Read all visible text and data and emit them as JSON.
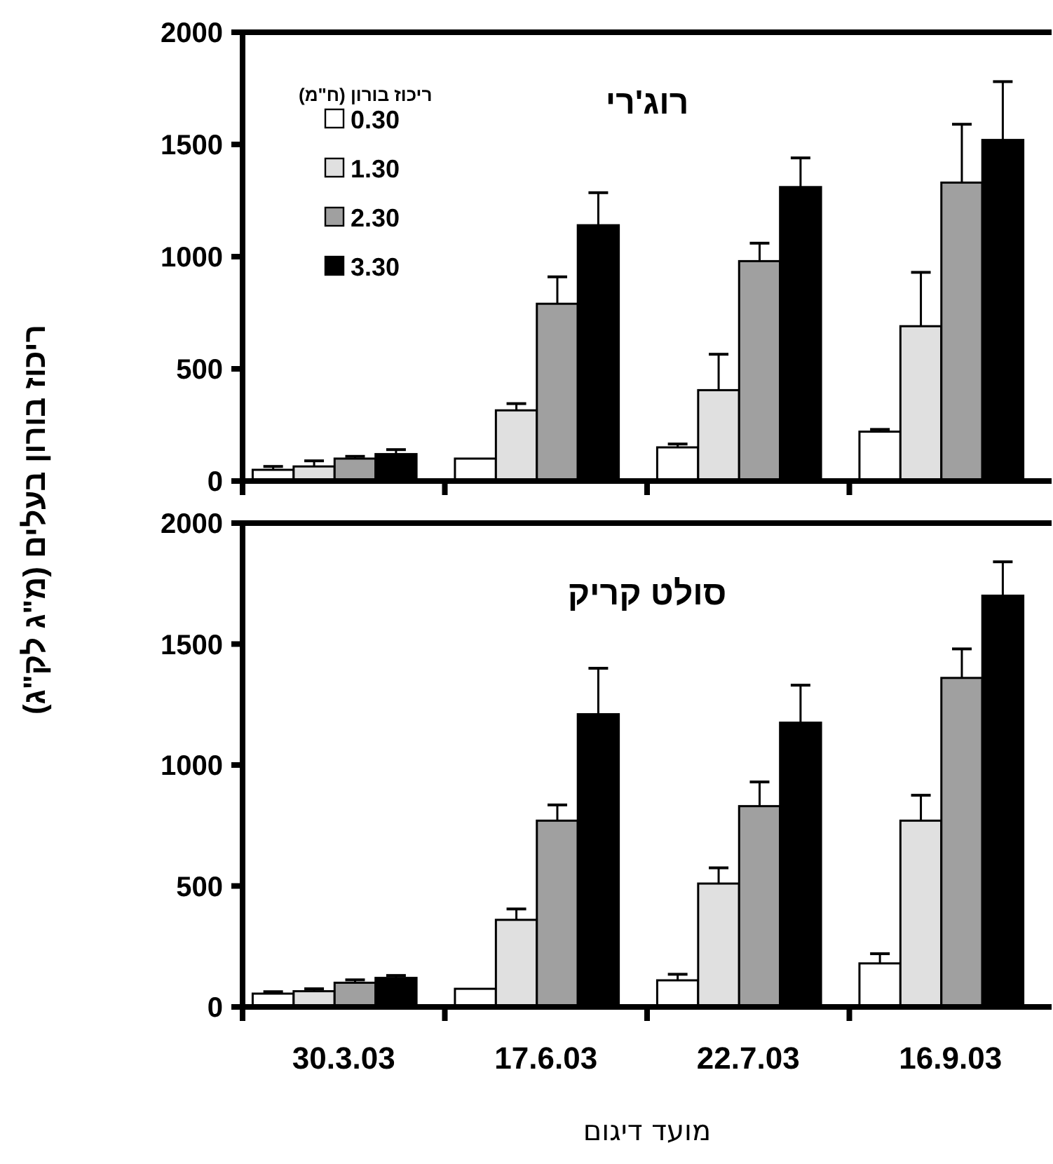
{
  "chart_data": [
    {
      "type": "bar",
      "title": "רוג'רי",
      "ylabel": "ריכוז בורון בעלים (מ\"ג לק\"ג)",
      "legend_title": "ריכוז בורון (ח\"מ)",
      "legend": "top left",
      "tick_labels": "y",
      "categories": [
        "30.3.03",
        "17.6.03",
        "22.7.03",
        "16.9.03"
      ],
      "ylim": [
        0,
        2000
      ],
      "yticks": [
        0,
        500,
        1000,
        1500,
        2000
      ],
      "series": [
        {
          "name": "0.30",
          "color": "#ffffff",
          "values": [
            50,
            100,
            150,
            220
          ],
          "errors": [
            [
              50,
              65
            ],
            null,
            [
              150,
              165
            ],
            [
              220,
              230
            ]
          ]
        },
        {
          "name": "1.30",
          "color": "#e0e0e0",
          "values": [
            65,
            315,
            405,
            690
          ],
          "errors": [
            [
              65,
              90
            ],
            [
              315,
              345
            ],
            [
              405,
              565
            ],
            [
              690,
              930
            ]
          ]
        },
        {
          "name": "2.30",
          "color": "#a0a0a0",
          "values": [
            100,
            790,
            980,
            1330
          ],
          "errors": [
            [
              100,
              110
            ],
            [
              790,
              910
            ],
            [
              980,
              1060
            ],
            [
              1330,
              1590
            ]
          ]
        },
        {
          "name": "3.30",
          "color": "#000000",
          "values": [
            120,
            1140,
            1310,
            1520
          ],
          "errors": [
            [
              120,
              140
            ],
            [
              1140,
              1285
            ],
            [
              1310,
              1440
            ],
            [
              1520,
              1780
            ]
          ]
        }
      ]
    },
    {
      "type": "bar",
      "title": "סולט קריק",
      "xlabel": "מועד דיגום",
      "categories": [
        "30.3.03",
        "17.6.03",
        "22.7.03",
        "16.9.03"
      ],
      "ylim": [
        0,
        2000
      ],
      "yticks": [
        0,
        500,
        1000,
        1500,
        2000
      ],
      "series": [
        {
          "color": "#ffffff",
          "values": [
            55,
            75,
            110,
            180
          ],
          "errors": [
            [
              55,
              63
            ],
            null,
            [
              110,
              135
            ],
            [
              180,
              220
            ]
          ]
        },
        {
          "color": "#e0e0e0",
          "values": [
            65,
            360,
            510,
            770
          ],
          "errors": [
            [
              65,
              75
            ],
            [
              360,
              405
            ],
            [
              510,
              575
            ],
            [
              770,
              875
            ]
          ]
        },
        {
          "color": "#a0a0a0",
          "values": [
            100,
            770,
            830,
            1360
          ],
          "errors": [
            [
              100,
              112
            ],
            [
              770,
              835
            ],
            [
              830,
              930
            ],
            [
              1360,
              1480
            ]
          ]
        },
        {
          "color": "#000000",
          "values": [
            120,
            1210,
            1175,
            1700
          ],
          "errors": [
            [
              120,
              130
            ],
            [
              1210,
              1400
            ],
            [
              1175,
              1330
            ],
            [
              1700,
              1840
            ]
          ]
        }
      ]
    }
  ]
}
